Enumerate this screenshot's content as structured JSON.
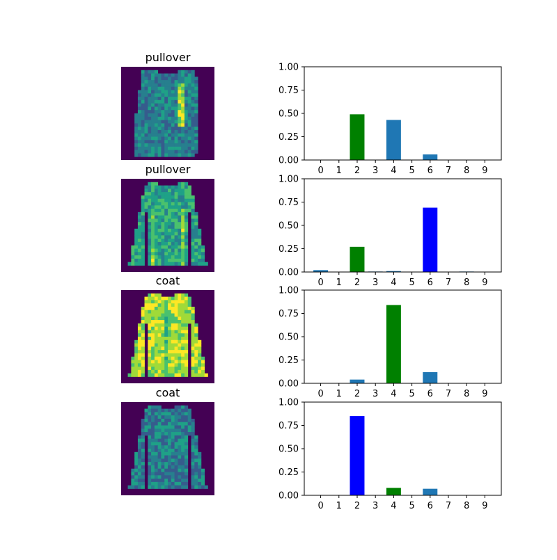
{
  "image_cmap": [
    "#440154",
    "#46327e",
    "#365c8d",
    "#277f8e",
    "#1fa187",
    "#4ac16d",
    "#a0da39",
    "#fde725"
  ],
  "bar_colors": {
    "default": "#1f77b4",
    "true_label": "green",
    "predicted": "blue"
  },
  "chart_data": [
    {
      "type": "bar",
      "image_title": "pullover",
      "image_shape": "pullover-dark",
      "categories": [
        "0",
        "1",
        "2",
        "3",
        "4",
        "5",
        "6",
        "7",
        "8",
        "9"
      ],
      "values": [
        0,
        0,
        0.49,
        0,
        0.43,
        0,
        0.06,
        0,
        0,
        0
      ],
      "true_label_index": 2,
      "predicted_index": 2,
      "ylim": [
        0,
        1
      ],
      "yticks": [
        "0.00",
        "0.25",
        "0.50",
        "0.75",
        "1.00"
      ]
    },
    {
      "type": "bar",
      "image_title": "pullover",
      "image_shape": "pullover-hood",
      "categories": [
        "0",
        "1",
        "2",
        "3",
        "4",
        "5",
        "6",
        "7",
        "8",
        "9"
      ],
      "values": [
        0.02,
        0,
        0.27,
        0.005,
        0.01,
        0,
        0.69,
        0,
        0.005,
        0
      ],
      "true_label_index": 2,
      "predicted_index": 6,
      "ylim": [
        0,
        1
      ],
      "yticks": [
        "0.00",
        "0.25",
        "0.50",
        "0.75",
        "1.00"
      ]
    },
    {
      "type": "bar",
      "image_title": "coat",
      "image_shape": "coat-bright",
      "categories": [
        "0",
        "1",
        "2",
        "3",
        "4",
        "5",
        "6",
        "7",
        "8",
        "9"
      ],
      "values": [
        0,
        0,
        0.04,
        0,
        0.84,
        0,
        0.12,
        0,
        0,
        0
      ],
      "true_label_index": 4,
      "predicted_index": 4,
      "ylim": [
        0,
        1
      ],
      "yticks": [
        "0.00",
        "0.25",
        "0.50",
        "0.75",
        "1.00"
      ]
    },
    {
      "type": "bar",
      "image_title": "coat",
      "image_shape": "coat-dark",
      "categories": [
        "0",
        "1",
        "2",
        "3",
        "4",
        "5",
        "6",
        "7",
        "8",
        "9"
      ],
      "values": [
        0,
        0,
        0.85,
        0,
        0.08,
        0,
        0.07,
        0,
        0,
        0
      ],
      "true_label_index": 4,
      "predicted_index": 2,
      "ylim": [
        0,
        1
      ],
      "yticks": [
        "0.00",
        "0.25",
        "0.50",
        "0.75",
        "1.00"
      ]
    }
  ]
}
